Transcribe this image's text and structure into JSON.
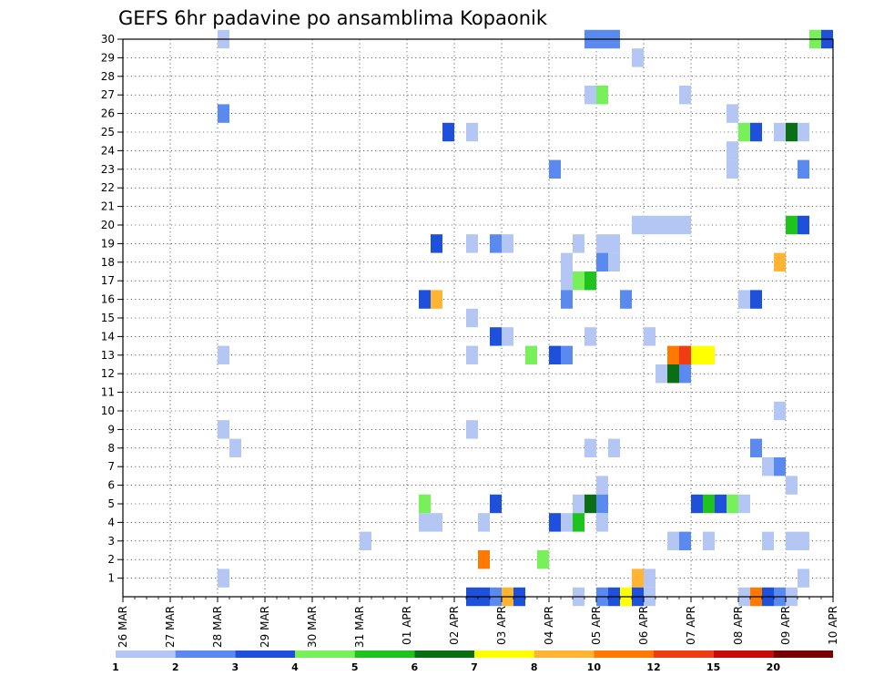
{
  "chart_data": {
    "type": "heatmap",
    "title": "GEFS 6hr padavine po ansamblima Kopaonik",
    "xlabel": "",
    "ylabel": "",
    "x_ticks": [
      "26 MAR",
      "27 MAR",
      "28 MAR",
      "29 MAR",
      "30 MAR",
      "31 MAR",
      "01 APR",
      "02 APR",
      "03 APR",
      "04 APR",
      "05 APR",
      "06 APR",
      "07 APR",
      "08 APR",
      "09 APR",
      "10 APR"
    ],
    "y_ticks": [
      "1",
      "2",
      "3",
      "4",
      "5",
      "6",
      "7",
      "8",
      "9",
      "10",
      "11",
      "12",
      "13",
      "14",
      "15",
      "16",
      "17",
      "18",
      "19",
      "20",
      "21",
      "22",
      "23",
      "24",
      "25",
      "26",
      "27",
      "28",
      "29",
      "30"
    ],
    "y_range": [
      0,
      30
    ],
    "steps_per_day": 4,
    "grid": true,
    "legend": {
      "placement": "bottom",
      "labels": [
        "1",
        "2",
        "3",
        "4",
        "5",
        "6",
        "7",
        "8",
        "10",
        "12",
        "15",
        "20"
      ],
      "colors": [
        "#b3c6f4",
        "#5a8af0",
        "#1e50dc",
        "#78f05a",
        "#1ec31e",
        "#0a6e14",
        "#ffff00",
        "#ffb432",
        "#ff7800",
        "#f03c14",
        "#c80a0a",
        "#780000"
      ]
    },
    "cells": [
      {
        "member": 30,
        "step": 8,
        "level": 1
      },
      {
        "member": 30,
        "step": 39,
        "level": 2
      },
      {
        "member": 30,
        "step": 40,
        "level": 2
      },
      {
        "member": 30,
        "step": 41,
        "level": 2
      },
      {
        "member": 30,
        "step": 58,
        "level": 4
      },
      {
        "member": 30,
        "step": 59,
        "level": 3
      },
      {
        "member": 29,
        "step": 43,
        "level": 1
      },
      {
        "member": 27,
        "step": 39,
        "level": 1
      },
      {
        "member": 27,
        "step": 40,
        "level": 4
      },
      {
        "member": 27,
        "step": 47,
        "level": 1
      },
      {
        "member": 26,
        "step": 8,
        "level": 2
      },
      {
        "member": 26,
        "step": 51,
        "level": 1
      },
      {
        "member": 25,
        "step": 27,
        "level": 3
      },
      {
        "member": 25,
        "step": 29,
        "level": 1
      },
      {
        "member": 25,
        "step": 52,
        "level": 4
      },
      {
        "member": 25,
        "step": 53,
        "level": 3
      },
      {
        "member": 25,
        "step": 55,
        "level": 1
      },
      {
        "member": 25,
        "step": 56,
        "level": 6
      },
      {
        "member": 25,
        "step": 57,
        "level": 1
      },
      {
        "member": 24,
        "step": 51,
        "level": 1
      },
      {
        "member": 23,
        "step": 36,
        "level": 2
      },
      {
        "member": 23,
        "step": 51,
        "level": 1
      },
      {
        "member": 23,
        "step": 57,
        "level": 2
      },
      {
        "member": 20,
        "step": 43,
        "level": 1
      },
      {
        "member": 20,
        "step": 44,
        "level": 1
      },
      {
        "member": 20,
        "step": 45,
        "level": 1
      },
      {
        "member": 20,
        "step": 46,
        "level": 1
      },
      {
        "member": 20,
        "step": 47,
        "level": 1
      },
      {
        "member": 20,
        "step": 56,
        "level": 5
      },
      {
        "member": 20,
        "step": 57,
        "level": 3
      },
      {
        "member": 19,
        "step": 26,
        "level": 3
      },
      {
        "member": 19,
        "step": 29,
        "level": 1
      },
      {
        "member": 19,
        "step": 31,
        "level": 2
      },
      {
        "member": 19,
        "step": 32,
        "level": 1
      },
      {
        "member": 19,
        "step": 38,
        "level": 1
      },
      {
        "member": 19,
        "step": 40,
        "level": 1
      },
      {
        "member": 19,
        "step": 41,
        "level": 1
      },
      {
        "member": 18,
        "step": 37,
        "level": 1
      },
      {
        "member": 18,
        "step": 40,
        "level": 2
      },
      {
        "member": 18,
        "step": 41,
        "level": 1
      },
      {
        "member": 18,
        "step": 55,
        "level": 8
      },
      {
        "member": 17,
        "step": 37,
        "level": 1
      },
      {
        "member": 17,
        "step": 38,
        "level": 4
      },
      {
        "member": 17,
        "step": 39,
        "level": 5
      },
      {
        "member": 16,
        "step": 25,
        "level": 3
      },
      {
        "member": 16,
        "step": 26,
        "level": 8
      },
      {
        "member": 16,
        "step": 37,
        "level": 2
      },
      {
        "member": 16,
        "step": 42,
        "level": 2
      },
      {
        "member": 16,
        "step": 52,
        "level": 1
      },
      {
        "member": 16,
        "step": 53,
        "level": 3
      },
      {
        "member": 15,
        "step": 29,
        "level": 1
      },
      {
        "member": 14,
        "step": 31,
        "level": 3
      },
      {
        "member": 14,
        "step": 32,
        "level": 1
      },
      {
        "member": 14,
        "step": 39,
        "level": 1
      },
      {
        "member": 14,
        "step": 44,
        "level": 1
      },
      {
        "member": 13,
        "step": 8,
        "level": 1
      },
      {
        "member": 13,
        "step": 29,
        "level": 1
      },
      {
        "member": 13,
        "step": 34,
        "level": 4
      },
      {
        "member": 13,
        "step": 36,
        "level": 3
      },
      {
        "member": 13,
        "step": 37,
        "level": 2
      },
      {
        "member": 13,
        "step": 46,
        "level": 9
      },
      {
        "member": 13,
        "step": 47,
        "level": 10
      },
      {
        "member": 13,
        "step": 48,
        "level": 7
      },
      {
        "member": 13,
        "step": 49,
        "level": 7
      },
      {
        "member": 12,
        "step": 45,
        "level": 1
      },
      {
        "member": 12,
        "step": 46,
        "level": 6
      },
      {
        "member": 12,
        "step": 47,
        "level": 2
      },
      {
        "member": 10,
        "step": 55,
        "level": 1
      },
      {
        "member": 9,
        "step": 8,
        "level": 1
      },
      {
        "member": 9,
        "step": 29,
        "level": 1
      },
      {
        "member": 8,
        "step": 9,
        "level": 1
      },
      {
        "member": 8,
        "step": 39,
        "level": 1
      },
      {
        "member": 8,
        "step": 41,
        "level": 1
      },
      {
        "member": 8,
        "step": 53,
        "level": 2
      },
      {
        "member": 7,
        "step": 54,
        "level": 1
      },
      {
        "member": 7,
        "step": 55,
        "level": 2
      },
      {
        "member": 6,
        "step": 40,
        "level": 1
      },
      {
        "member": 6,
        "step": 56,
        "level": 1
      },
      {
        "member": 5,
        "step": 25,
        "level": 4
      },
      {
        "member": 5,
        "step": 31,
        "level": 3
      },
      {
        "member": 5,
        "step": 38,
        "level": 1
      },
      {
        "member": 5,
        "step": 39,
        "level": 6
      },
      {
        "member": 5,
        "step": 40,
        "level": 2
      },
      {
        "member": 5,
        "step": 48,
        "level": 3
      },
      {
        "member": 5,
        "step": 49,
        "level": 5
      },
      {
        "member": 5,
        "step": 50,
        "level": 3
      },
      {
        "member": 5,
        "step": 51,
        "level": 4
      },
      {
        "member": 5,
        "step": 52,
        "level": 1
      },
      {
        "member": 4,
        "step": 25,
        "level": 1
      },
      {
        "member": 4,
        "step": 26,
        "level": 1
      },
      {
        "member": 4,
        "step": 30,
        "level": 1
      },
      {
        "member": 4,
        "step": 36,
        "level": 3
      },
      {
        "member": 4,
        "step": 37,
        "level": 1
      },
      {
        "member": 4,
        "step": 38,
        "level": 5
      },
      {
        "member": 4,
        "step": 40,
        "level": 1
      },
      {
        "member": 3,
        "step": 20,
        "level": 1
      },
      {
        "member": 3,
        "step": 46,
        "level": 1
      },
      {
        "member": 3,
        "step": 47,
        "level": 2
      },
      {
        "member": 3,
        "step": 49,
        "level": 1
      },
      {
        "member": 3,
        "step": 54,
        "level": 1
      },
      {
        "member": 3,
        "step": 56,
        "level": 1
      },
      {
        "member": 3,
        "step": 57,
        "level": 1
      },
      {
        "member": 2,
        "step": 30,
        "level": 9
      },
      {
        "member": 2,
        "step": 35,
        "level": 4
      },
      {
        "member": 1,
        "step": 8,
        "level": 1
      },
      {
        "member": 1,
        "step": 43,
        "level": 8
      },
      {
        "member": 1,
        "step": 44,
        "level": 1
      },
      {
        "member": 1,
        "step": 57,
        "level": 1
      },
      {
        "member": 0,
        "step": 29,
        "level": 3
      },
      {
        "member": 0,
        "step": 30,
        "level": 3
      },
      {
        "member": 0,
        "step": 31,
        "level": 2
      },
      {
        "member": 0,
        "step": 32,
        "level": 8
      },
      {
        "member": 0,
        "step": 33,
        "level": 3
      },
      {
        "member": 0,
        "step": 38,
        "level": 1
      },
      {
        "member": 0,
        "step": 40,
        "level": 2
      },
      {
        "member": 0,
        "step": 41,
        "level": 3
      },
      {
        "member": 0,
        "step": 42,
        "level": 7
      },
      {
        "member": 0,
        "step": 43,
        "level": 3
      },
      {
        "member": 0,
        "step": 44,
        "level": 1
      },
      {
        "member": 0,
        "step": 52,
        "level": 1
      },
      {
        "member": 0,
        "step": 53,
        "level": 9
      },
      {
        "member": 0,
        "step": 54,
        "level": 3
      },
      {
        "member": 0,
        "step": 55,
        "level": 2
      },
      {
        "member": 0,
        "step": 56,
        "level": 1
      }
    ]
  }
}
